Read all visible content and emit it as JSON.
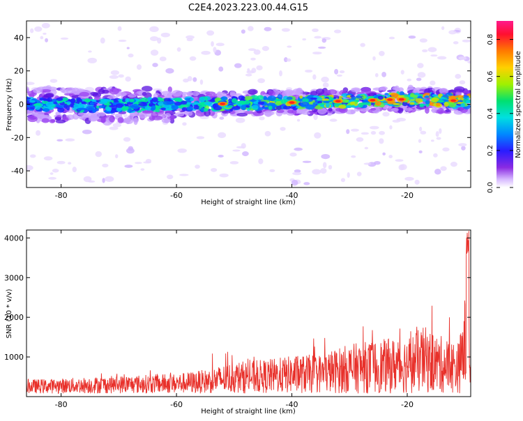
{
  "title": "C2E4.2023.223.00.44.G15",
  "chart_data": [
    {
      "type": "heatmap",
      "ylabel": "Frequency (Hz)",
      "xlabel": "Height of straight line (km)",
      "xlim": [
        -86,
        -9
      ],
      "ylim": [
        -50,
        50
      ],
      "xticks": [
        "-80",
        "-60",
        "-40",
        "-20"
      ],
      "yticks": [
        "40",
        "20",
        "0",
        "-20",
        "-40"
      ],
      "colorbar": {
        "label": "Normalized spectral amplitude",
        "range": [
          0.0,
          0.9
        ],
        "ticks": [
          "0.0",
          "0.2",
          "0.4",
          "0.6",
          "0.8"
        ]
      },
      "ridge": {
        "description_points_height_km": [
          -86,
          -70,
          -55,
          -40,
          -30,
          -20,
          -10
        ],
        "frequency_hz": [
          0,
          -1,
          0,
          1,
          2,
          3,
          2
        ]
      }
    },
    {
      "type": "line",
      "ylabel": "SNR (10 * v/v)",
      "xlabel": "Height of straight line (km)",
      "xlim": [
        -86,
        -9
      ],
      "ylim": [
        0,
        4200
      ],
      "xticks": [
        "-80",
        "-60",
        "-40",
        "-20"
      ],
      "yticks": [
        "4000",
        "3000",
        "2000",
        "1000"
      ],
      "color": "#e8302a",
      "envelope": {
        "x": [
          -86,
          -80,
          -70,
          -60,
          -55,
          -50,
          -45,
          -40,
          -35,
          -30,
          -25,
          -20,
          -17,
          -15,
          -13,
          -11,
          -10,
          -9.5
        ],
        "y": [
          350,
          380,
          450,
          500,
          600,
          800,
          850,
          950,
          1000,
          1250,
          1350,
          1450,
          1700,
          1500,
          1400,
          1300,
          2500,
          1200
        ]
      }
    }
  ]
}
